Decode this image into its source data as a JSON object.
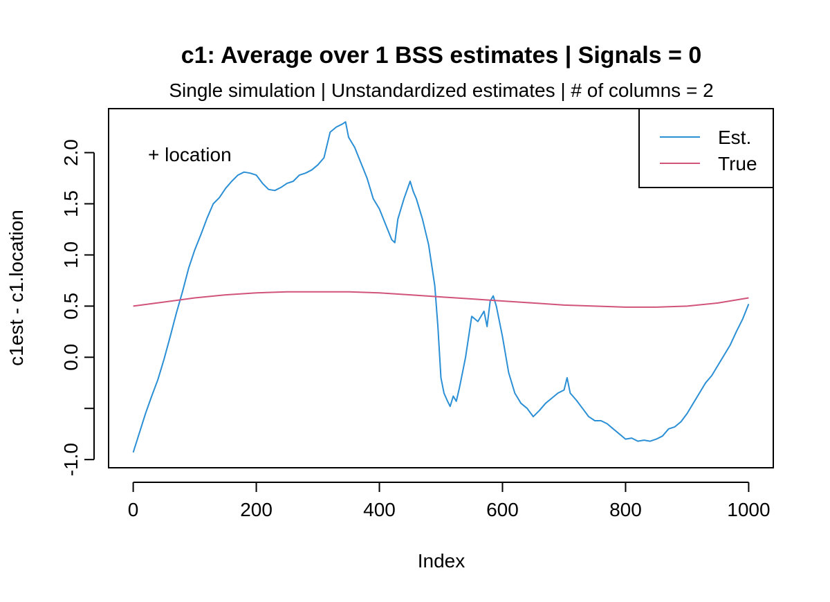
{
  "chart_data": {
    "type": "line",
    "title": "c1: Average over 1 BSS estimates  |  Signals = 0",
    "subtitle": "Single simulation  |  Unstandardized estimates  |  # of columns = 2",
    "xlabel": "Index",
    "ylabel": "c1est - c1.location",
    "annotation": "+ location",
    "xlim": [
      -40,
      1040
    ],
    "ylim": [
      -1.08,
      2.43
    ],
    "x_ticks": [
      0,
      200,
      400,
      600,
      800,
      1000
    ],
    "x_tick_labels": [
      "0",
      "200",
      "400",
      "600",
      "800",
      "1000"
    ],
    "y_ticks": [
      -1.0,
      -0.5,
      0.0,
      0.5,
      1.0,
      1.5,
      2.0
    ],
    "y_tick_labels": [
      "-1.0",
      "",
      "0.0",
      "0.5",
      "1.0",
      "1.5",
      "2.0"
    ],
    "grid": false,
    "legend_position": "top-right",
    "series": [
      {
        "name": "Est.",
        "color": "#2b8fd6",
        "x": [
          0,
          10,
          20,
          30,
          40,
          50,
          60,
          70,
          80,
          90,
          100,
          110,
          120,
          130,
          140,
          150,
          160,
          170,
          180,
          190,
          200,
          210,
          220,
          230,
          240,
          250,
          260,
          270,
          280,
          290,
          300,
          310,
          320,
          330,
          340,
          345,
          350,
          360,
          370,
          380,
          390,
          400,
          410,
          420,
          425,
          430,
          440,
          450,
          455,
          460,
          470,
          480,
          490,
          495,
          500,
          505,
          510,
          515,
          520,
          525,
          530,
          540,
          550,
          560,
          570,
          575,
          580,
          585,
          590,
          600,
          610,
          620,
          630,
          640,
          650,
          660,
          670,
          680,
          690,
          700,
          705,
          710,
          720,
          730,
          740,
          750,
          760,
          770,
          780,
          790,
          800,
          810,
          820,
          830,
          840,
          850,
          860,
          870,
          880,
          890,
          900,
          910,
          920,
          930,
          940,
          950,
          960,
          970,
          980,
          990,
          1000
        ],
        "values": [
          -0.93,
          -0.74,
          -0.55,
          -0.38,
          -0.22,
          -0.02,
          0.2,
          0.43,
          0.64,
          0.87,
          1.05,
          1.2,
          1.36,
          1.5,
          1.56,
          1.65,
          1.72,
          1.78,
          1.81,
          1.8,
          1.78,
          1.7,
          1.64,
          1.63,
          1.66,
          1.7,
          1.72,
          1.78,
          1.8,
          1.83,
          1.88,
          1.95,
          2.2,
          2.25,
          2.28,
          2.3,
          2.15,
          2.05,
          1.9,
          1.75,
          1.55,
          1.45,
          1.3,
          1.15,
          1.12,
          1.35,
          1.55,
          1.72,
          1.62,
          1.55,
          1.35,
          1.1,
          0.7,
          0.3,
          -0.2,
          -0.35,
          -0.42,
          -0.48,
          -0.38,
          -0.43,
          -0.3,
          0.0,
          0.4,
          0.35,
          0.45,
          0.3,
          0.55,
          0.6,
          0.5,
          0.2,
          -0.15,
          -0.35,
          -0.45,
          -0.5,
          -0.58,
          -0.52,
          -0.45,
          -0.4,
          -0.35,
          -0.32,
          -0.2,
          -0.35,
          -0.42,
          -0.5,
          -0.58,
          -0.62,
          -0.62,
          -0.65,
          -0.7,
          -0.75,
          -0.8,
          -0.79,
          -0.82,
          -0.81,
          -0.82,
          -0.8,
          -0.77,
          -0.7,
          -0.68,
          -0.63,
          -0.55,
          -0.45,
          -0.35,
          -0.25,
          -0.18,
          -0.08,
          0.02,
          0.12,
          0.25,
          0.37,
          0.52
        ]
      },
      {
        "name": "True",
        "color": "#d1537a",
        "x": [
          0,
          50,
          100,
          150,
          200,
          250,
          300,
          350,
          400,
          450,
          500,
          550,
          600,
          650,
          700,
          750,
          800,
          850,
          900,
          950,
          1000
        ],
        "values": [
          0.5,
          0.54,
          0.58,
          0.61,
          0.63,
          0.64,
          0.64,
          0.64,
          0.63,
          0.61,
          0.59,
          0.57,
          0.55,
          0.53,
          0.51,
          0.5,
          0.49,
          0.49,
          0.5,
          0.53,
          0.58
        ]
      }
    ]
  }
}
